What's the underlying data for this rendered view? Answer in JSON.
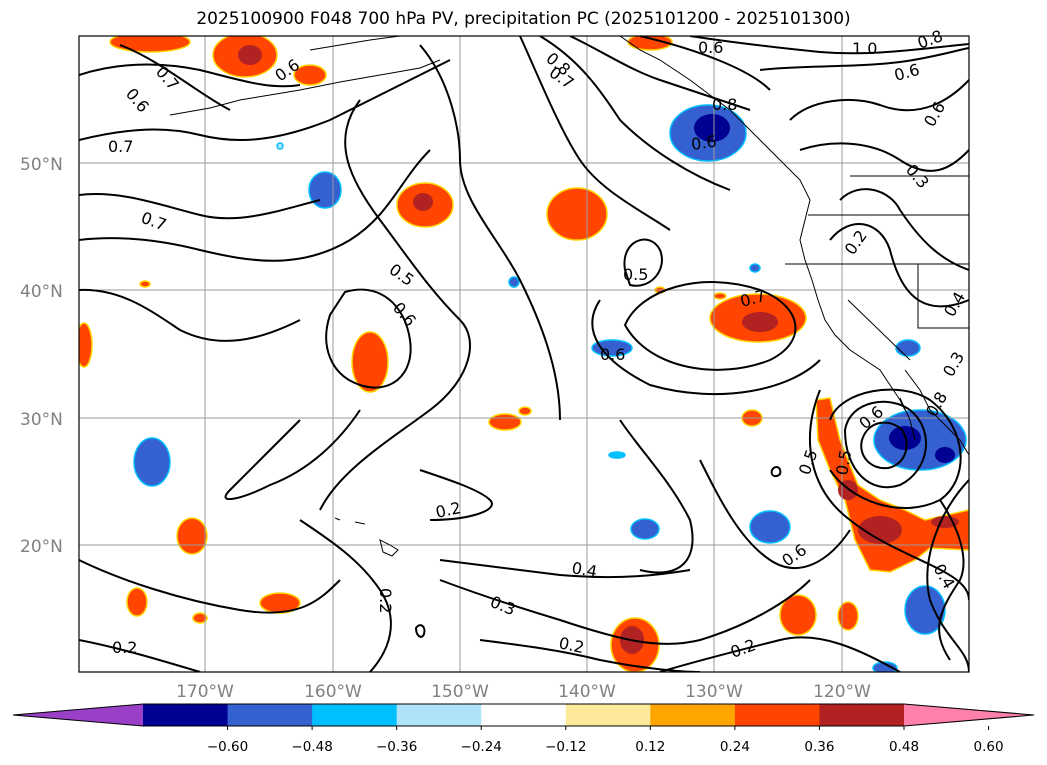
{
  "title": "2025100900 F048 700 hPa PV, precipitation PC (2025101200 - 2025101300)",
  "map": {
    "lat_labels": [
      "50°N",
      "40°N",
      "30°N",
      "20°N"
    ],
    "lon_labels": [
      "170°W",
      "160°W",
      "150°W",
      "140°W",
      "130°W",
      "120°W"
    ],
    "contour_labels": [
      "0.6",
      "0.7",
      "0.7",
      "0.7",
      "0.6",
      "0.5",
      "0.6",
      "0.2",
      "0.2",
      "0.2",
      "0.3",
      "0.4",
      "0.2",
      "0.2",
      "0.5",
      "0.7",
      "0.8",
      "0.7",
      "0.6",
      "1.0",
      "0.8",
      "0.6",
      "0.6",
      "0.3",
      "0.2",
      "0.6",
      "0.5",
      "0.5",
      "0.6",
      "0.6",
      "0.4",
      "0.4",
      "0.3",
      "0.8",
      "0.8",
      "0.6"
    ]
  },
  "colorbar": {
    "colors": [
      "#9a40c8",
      "#000092",
      "#3560d0",
      "#00bfff",
      "#aee3fa",
      "#ffffff",
      "#fde99a",
      "#ffa500",
      "#ff4500",
      "#b22222",
      "#ff80a8"
    ],
    "tick_labels": [
      "−0.60",
      "−0.48",
      "−0.36",
      "−0.24",
      "−0.12",
      "0.12",
      "0.24",
      "0.36",
      "0.48",
      "0.60"
    ]
  }
}
